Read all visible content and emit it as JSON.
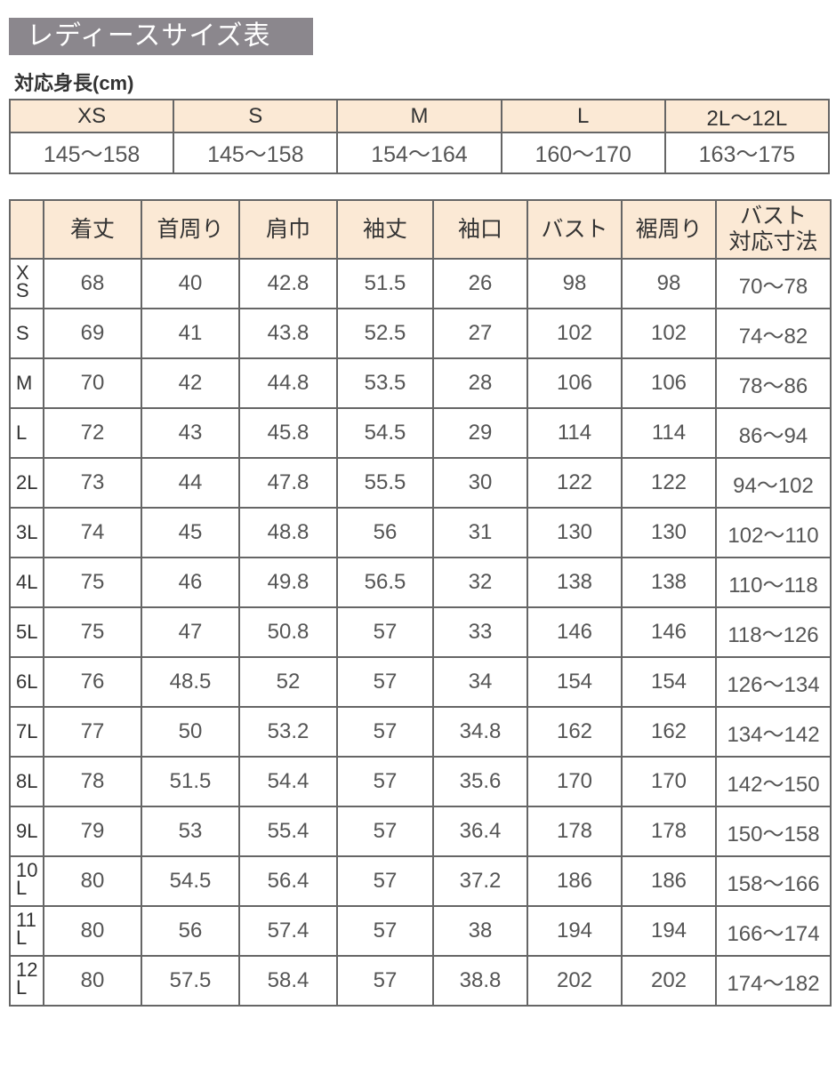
{
  "title": "レディースサイズ表",
  "subtitle": "対応身長(cm)",
  "height_table": {
    "headers": [
      "XS",
      "S",
      "M",
      "L",
      "2L〜12L"
    ],
    "values": [
      "145〜158",
      "145〜158",
      "154〜164",
      "160〜170",
      "163〜175"
    ]
  },
  "size_table": {
    "headers": [
      "",
      "着丈",
      "首周り",
      "肩巾",
      "袖丈",
      "袖口",
      "バスト",
      "裾周り",
      "バスト\n対応寸法"
    ],
    "rows": [
      [
        "XS",
        "68",
        "40",
        "42.8",
        "51.5",
        "26",
        "98",
        "98",
        "70〜78"
      ],
      [
        "S",
        "69",
        "41",
        "43.8",
        "52.5",
        "27",
        "102",
        "102",
        "74〜82"
      ],
      [
        "M",
        "70",
        "42",
        "44.8",
        "53.5",
        "28",
        "106",
        "106",
        "78〜86"
      ],
      [
        "L",
        "72",
        "43",
        "45.8",
        "54.5",
        "29",
        "114",
        "114",
        "86〜94"
      ],
      [
        "2L",
        "73",
        "44",
        "47.8",
        "55.5",
        "30",
        "122",
        "122",
        "94〜102"
      ],
      [
        "3L",
        "74",
        "45",
        "48.8",
        "56",
        "31",
        "130",
        "130",
        "102〜110"
      ],
      [
        "4L",
        "75",
        "46",
        "49.8",
        "56.5",
        "32",
        "138",
        "138",
        "110〜118"
      ],
      [
        "5L",
        "75",
        "47",
        "50.8",
        "57",
        "33",
        "146",
        "146",
        "118〜126"
      ],
      [
        "6L",
        "76",
        "48.5",
        "52",
        "57",
        "34",
        "154",
        "154",
        "126〜134"
      ],
      [
        "7L",
        "77",
        "50",
        "53.2",
        "57",
        "34.8",
        "162",
        "162",
        "134〜142"
      ],
      [
        "8L",
        "78",
        "51.5",
        "54.4",
        "57",
        "35.6",
        "170",
        "170",
        "142〜150"
      ],
      [
        "9L",
        "79",
        "53",
        "55.4",
        "57",
        "36.4",
        "178",
        "178",
        "150〜158"
      ],
      [
        "10L",
        "80",
        "54.5",
        "56.4",
        "57",
        "37.2",
        "186",
        "186",
        "158〜166"
      ],
      [
        "11L",
        "80",
        "56",
        "57.4",
        "57",
        "38",
        "194",
        "194",
        "166〜174"
      ],
      [
        "12L",
        "80",
        "57.5",
        "58.4",
        "57",
        "38.8",
        "202",
        "202",
        "174〜182"
      ]
    ]
  }
}
